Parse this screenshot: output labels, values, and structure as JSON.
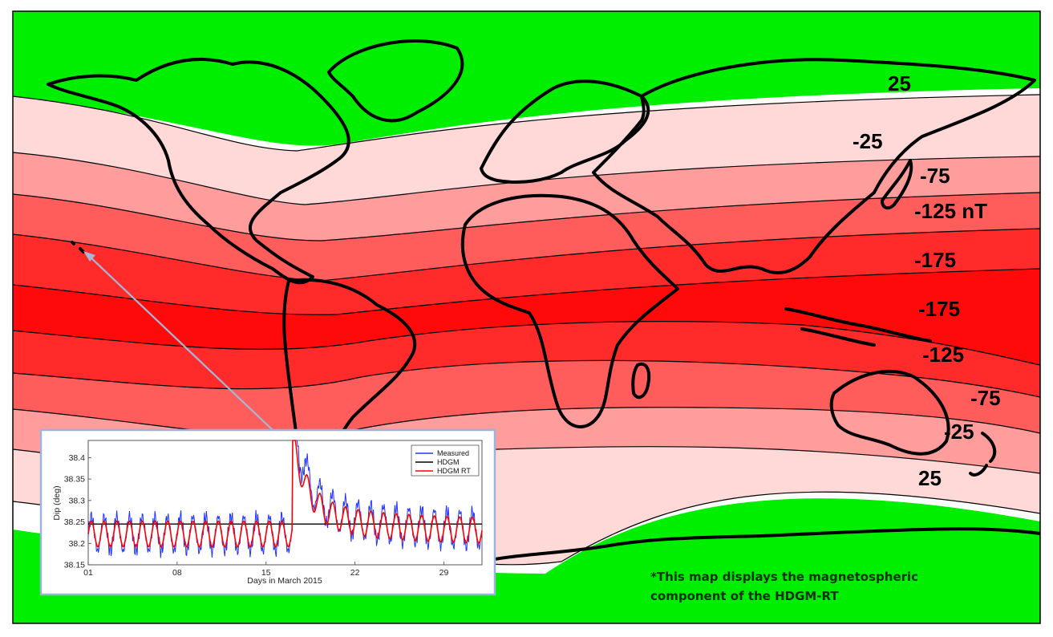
{
  "map": {
    "contour_labels": [
      "25",
      "-25",
      "-75",
      "-125 nT",
      "-175",
      "-175",
      "-125",
      "-75",
      "-25",
      "25"
    ],
    "colors": {
      "polar": "#00ee00",
      "band_plus25": "#ffffff",
      "band_minus25": "#ffd8d8",
      "band_minus75": "#ff9c9c",
      "band_minus125": "#ff5c5c",
      "band_minus175": "#ff2a2a",
      "band_core": "#ff0a0a",
      "coast": "#000000"
    },
    "note_lines": [
      "*This map displays the magnetospheric",
      "component of the HDGM-RT"
    ]
  },
  "inset": {
    "chart_data": {
      "type": "line",
      "xlabel": "Days in March 2015",
      "ylabel": "Dip (deg)",
      "x_ticks": [
        "01",
        "08",
        "15",
        "22",
        "29"
      ],
      "y_ticks": [
        "38.15",
        "38.2",
        "38.25",
        "38.3",
        "38.35",
        "38.4"
      ],
      "ylim": [
        38.15,
        38.44
      ],
      "xlim": [
        1,
        32
      ],
      "legend_position": "top-right",
      "series": [
        {
          "name": "Measured",
          "color": "#2233ff"
        },
        {
          "name": "HDGM",
          "color": "#000000",
          "constant": 38.245
        },
        {
          "name": "HDGM RT",
          "color": "#ff0000"
        }
      ]
    }
  }
}
